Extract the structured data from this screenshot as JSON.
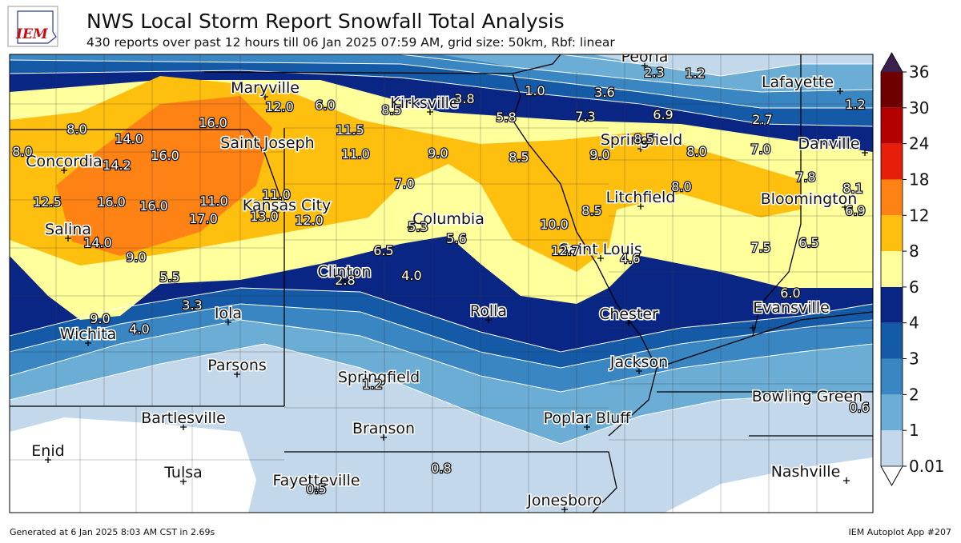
{
  "header": {
    "logo": "IEM",
    "title": "NWS Local Storm Report Snowfall Total Analysis",
    "subtitle": "430 reports over past 12 hours till 06 Jan 2025 07:59 AM, grid size: 50km, Rbf: linear"
  },
  "map": {
    "cities": [
      "Peoria",
      "Maryville",
      "Kirksville",
      "Lafayette",
      "Saint Joseph",
      "Springfield",
      "Danville",
      "Concordia",
      "Litchfield",
      "Bloomington",
      "Kansas City",
      "Columbia",
      "Salina",
      "Saint Louis",
      "Clinton",
      "Rolla",
      "Evansville",
      "Chester",
      "Iola",
      "Wichita",
      "Jackson",
      "Parsons",
      "Springfield",
      "Bowling Green",
      "Bartlesville",
      "Poplar Bluff",
      "Branson",
      "Enid",
      "Tulsa",
      "Nashville",
      "Fayetteville",
      "Jonesboro"
    ],
    "value_labels": [
      "2.3",
      "1.2",
      "1.0",
      "3.6",
      "3.8",
      "1.2",
      "5.8",
      "7.3",
      "6.9",
      "2.7",
      "12.0",
      "6.0",
      "8.5",
      "16.0",
      "8.0",
      "14.0",
      "11.5",
      "8.5",
      "9.0",
      "8.0",
      "7.0",
      "8.0",
      "16.0",
      "11.0",
      "9.0",
      "8.5",
      "14.2",
      "7.8",
      "8.1",
      "7.0",
      "8.0",
      "11.0",
      "12.5",
      "16.0",
      "16.0",
      "11.0",
      "6.9",
      "8.5",
      "13.0",
      "12.0",
      "17.0",
      "10.0",
      "5.3",
      "5.6",
      "14.0",
      "6.5",
      "12.7",
      "7.5",
      "6.5",
      "9.0",
      "4.6",
      "5.5",
      "2.8",
      "4.0",
      "6.0",
      "3.3",
      "9.0",
      "4.0",
      "1.2",
      "0.6",
      "0.8",
      "0.5"
    ],
    "colorbar": {
      "ticks": [
        0.01,
        1,
        2,
        3,
        4,
        6,
        8,
        12,
        18,
        24,
        30,
        36
      ],
      "colors": [
        "#c3d8ea",
        "#6badd5",
        "#3a86c2",
        "#155aa6",
        "#0a2685",
        "#ffff9c",
        "#ffbf0f",
        "#ff8214",
        "#e61e0a",
        "#b40000",
        "#6e0000"
      ],
      "under_color": "#ffffff",
      "over_color": "#3c1f4e"
    }
  },
  "footer": {
    "left": "Generated at 6 Jan 2025 8:03 AM CST in 2.69s",
    "right": "IEM Autoplot App #207"
  }
}
